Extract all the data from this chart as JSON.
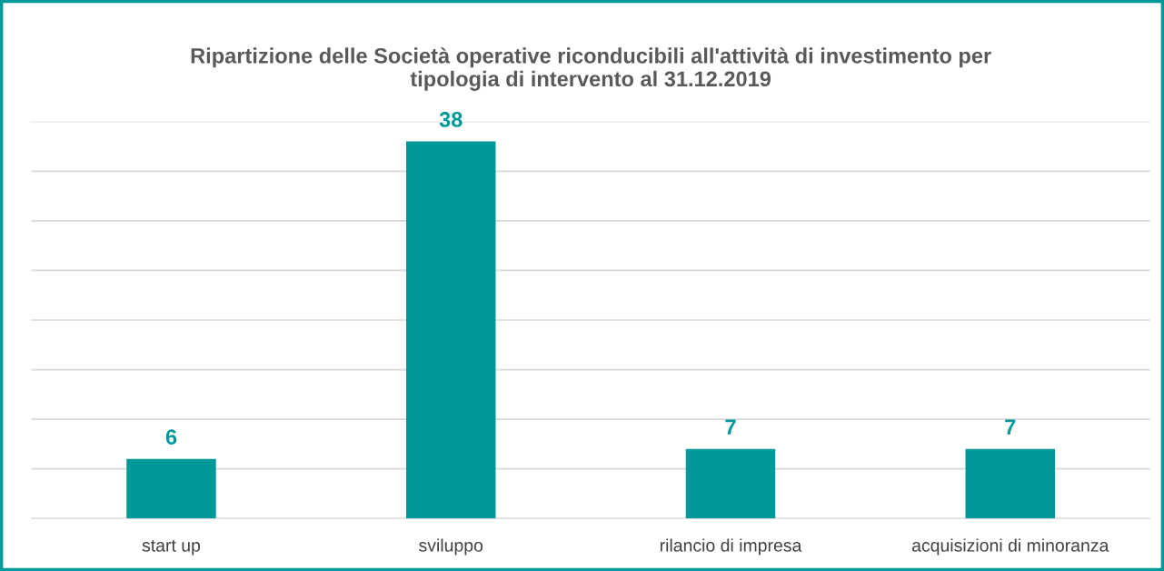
{
  "chart_data": {
    "type": "bar",
    "title": "Ripartizione delle Società operative riconducibili all'attività di investimento per\ntipologia di intervento al 31.12.2019",
    "categories": [
      "start up",
      "sviluppo",
      "rilancio di impresa",
      "acquisizioni di minoranza"
    ],
    "values": [
      6,
      38,
      7,
      7
    ],
    "color": "#009999",
    "ylim": [
      0,
      40
    ],
    "yticks": [
      {
        "value": 0,
        "label": null
      },
      {
        "value": 5,
        "label": null
      },
      {
        "value": 10,
        "label": null
      },
      {
        "value": 15,
        "label": null
      },
      {
        "value": 20,
        "label": null
      },
      {
        "value": 25,
        "label": null
      },
      {
        "value": 30,
        "label": null
      },
      {
        "value": 35,
        "label": null
      },
      {
        "value": 40,
        "label": null
      }
    ],
    "tick_labels": "x",
    "grid": "y",
    "data_labels": true,
    "legend": false
  }
}
